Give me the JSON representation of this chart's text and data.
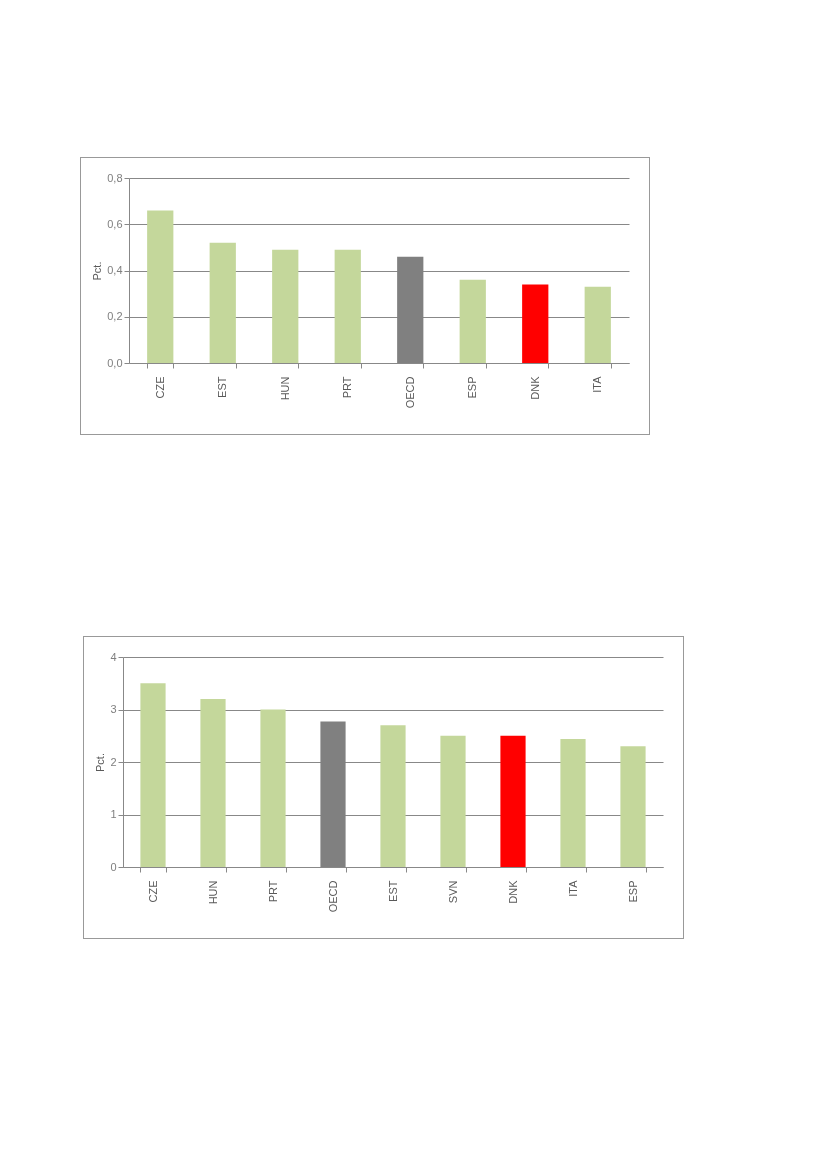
{
  "chart_data": [
    {
      "type": "bar",
      "ylabel": "Pct.",
      "categories": [
        "CZE",
        "EST",
        "HUN",
        "PRT",
        "OECD",
        "ESP",
        "DNK",
        "ITA"
      ],
      "values": [
        0.66,
        0.52,
        0.49,
        0.49,
        0.46,
        0.36,
        0.34,
        0.33
      ],
      "colors": [
        "#c4d79b",
        "#c4d79b",
        "#c4d79b",
        "#c4d79b",
        "#808080",
        "#c4d79b",
        "#ff0000",
        "#c4d79b"
      ],
      "ylim": [
        0,
        0.8
      ],
      "yticks": [
        {
          "value": 0,
          "label": "0,0"
        },
        {
          "value": 0.2,
          "label": "0,2"
        },
        {
          "value": 0.4,
          "label": "0,4"
        },
        {
          "value": 0.6,
          "label": "0,6"
        },
        {
          "value": 0.8,
          "label": "0,8"
        }
      ],
      "grid": "y"
    },
    {
      "type": "bar",
      "ylabel": "Pct.",
      "categories": [
        "CZE",
        "HUN",
        "PRT",
        "OECD",
        "EST",
        "SVN",
        "DNK",
        "ITA",
        "ESP"
      ],
      "values": [
        3.5,
        3.2,
        3.0,
        2.77,
        2.7,
        2.5,
        2.5,
        2.44,
        2.3
      ],
      "colors": [
        "#c4d79b",
        "#c4d79b",
        "#c4d79b",
        "#808080",
        "#c4d79b",
        "#c4d79b",
        "#ff0000",
        "#c4d79b",
        "#c4d79b"
      ],
      "ylim": [
        0,
        4
      ],
      "yticks": [
        0,
        1,
        2,
        3,
        4
      ],
      "grid": "y"
    }
  ]
}
